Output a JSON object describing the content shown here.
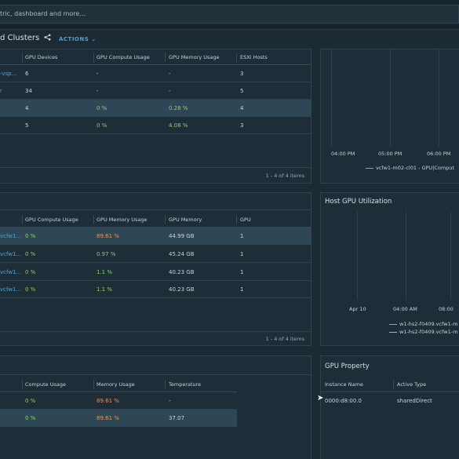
{
  "search": {
    "placeholder_text": "tric, dashboard and more..."
  },
  "header": {
    "title": "d Clusters",
    "share_icon": "share-icon",
    "actions_label": "ACTIONS"
  },
  "clusters_table": {
    "columns": [
      "GPU Devices",
      "GPU Compute Usage",
      "GPU Memory Usage",
      "ESXi Hosts"
    ],
    "rows": [
      {
        "name": "-vsp...",
        "gpu_devices": "6",
        "compute": "-",
        "memory": "-",
        "hosts": "3"
      },
      {
        "name": "r",
        "gpu_devices": "34",
        "compute": "-",
        "memory": "-",
        "hosts": "5"
      },
      {
        "name": "",
        "gpu_devices": "4",
        "compute": "0 %",
        "memory": "0.28 %",
        "hosts": "4"
      },
      {
        "name": "",
        "gpu_devices": "5",
        "compute": "0 %",
        "memory": "4.08 %",
        "hosts": "3"
      }
    ],
    "footer": "1 - 4 of 4 items"
  },
  "hosts_table": {
    "columns": [
      "GPU Compute Usage",
      "GPU Memory Usage",
      "GPU Memory",
      "GPU"
    ],
    "rows": [
      {
        "name": "vcfw1...",
        "compute": "0 %",
        "memory_usage": "89.61 %",
        "memory": "44.99 GB",
        "gpu": "1"
      },
      {
        "name": "vcfw1...",
        "compute": "0 %",
        "memory_usage": "0.97 %",
        "memory": "45.24 GB",
        "gpu": "1"
      },
      {
        "name": "vcfw1...",
        "compute": "0 %",
        "memory_usage": "1.1 %",
        "memory": "40.23 GB",
        "gpu": "1"
      },
      {
        "name": "vcfw1...",
        "compute": "0 %",
        "memory_usage": "1.1 %",
        "memory": "40.23 GB",
        "gpu": "1"
      }
    ],
    "footer": "1 - 4 of 4 items"
  },
  "gpu_table": {
    "columns": [
      "Compute Usage",
      "Memory Usage",
      "Temperature"
    ],
    "rows": [
      {
        "compute": "0 %",
        "memory_usage": "89.61 %",
        "temperature": "-"
      },
      {
        "compute": "0 %",
        "memory_usage": "89.61 %",
        "temperature": "37.07"
      }
    ]
  },
  "cluster_chart": {
    "x_ticks": [
      "04:00 PM",
      "05:00 PM",
      "06:00 PM"
    ],
    "legend": "vcfw1-m02-cl01 - GPU|Comput"
  },
  "host_gpu_chart": {
    "title": "Host GPU Utilization",
    "x_ticks": [
      "Apr 10",
      "04:00 AM",
      "08:00"
    ],
    "legend": [
      "w1-hs2-f0409.vcfw1-m",
      "w1-hs2-f0409.vcfw1-m"
    ]
  },
  "gpu_property": {
    "title": "GPU Property",
    "columns": [
      "Instance Name",
      "Active Type"
    ],
    "row": {
      "instance": "0000:d8:00.0",
      "type": "sharedDirect"
    }
  },
  "colors": {
    "green": "#8ccf60",
    "orange": "#e6925a",
    "link": "#4aa3d8",
    "selected_row": "#2e4756"
  }
}
